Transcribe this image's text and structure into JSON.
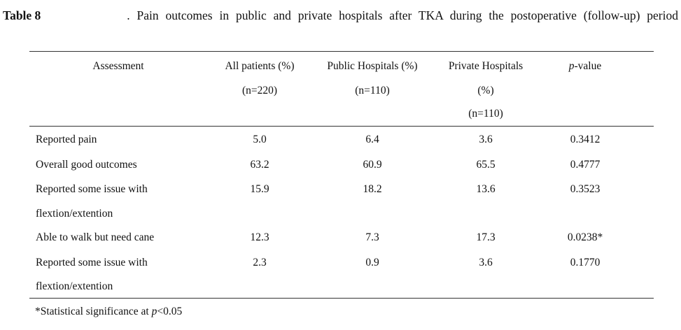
{
  "caption": {
    "label": "Table 8",
    "text": ". Pain outcomes in public and private hospitals after TKA during the postoperative (follow-up) period"
  },
  "table": {
    "headers": [
      {
        "lines": [
          "Assessment"
        ]
      },
      {
        "lines": [
          "All patients (%)",
          "(n=220)"
        ]
      },
      {
        "lines": [
          "Public Hospitals (%)",
          "(n=110)"
        ]
      },
      {
        "lines": [
          "Private Hospitals",
          "(%)",
          "(n=110)"
        ]
      },
      {
        "p_italic": "p",
        "rest": "-value"
      }
    ],
    "rows": [
      {
        "assessment": [
          "Reported pain"
        ],
        "all": "5.0",
        "public": "6.4",
        "private": "3.6",
        "p": "0.3412"
      },
      {
        "assessment": [
          "Overall good outcomes"
        ],
        "all": "63.2",
        "public": "60.9",
        "private": "65.5",
        "p": "0.4777"
      },
      {
        "assessment": [
          "Reported some issue with",
          "flextion/extention"
        ],
        "all": "15.9",
        "public": "18.2",
        "private": "13.6",
        "p": "0.3523"
      },
      {
        "assessment": [
          "Able to walk but need cane"
        ],
        "all": "12.3",
        "public": "7.3",
        "private": "17.3",
        "p": "0.0238*"
      },
      {
        "assessment": [
          "Reported some issue with",
          "flextion/extention"
        ],
        "all": "2.3",
        "public": "0.9",
        "private": "3.6",
        "p": "0.1770"
      }
    ]
  },
  "footnote": {
    "prefix": "*Statistical significance at ",
    "italic": "p",
    "suffix": "<0.05"
  }
}
